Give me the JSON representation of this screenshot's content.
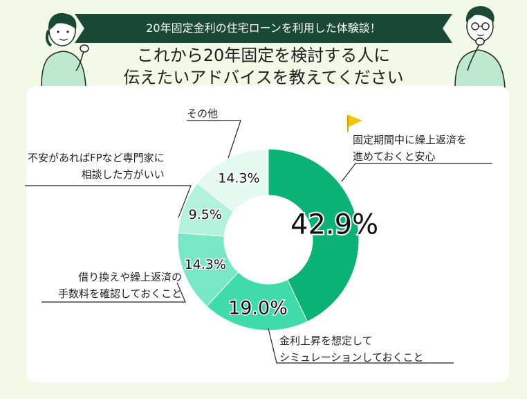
{
  "header": {
    "ribbon": "20年固定金利の住宅ローンを利用した体験談！",
    "line1": "これから20年固定を検討する人に",
    "line2": "伝えたいアドバイスを教えてください"
  },
  "colors": {
    "ribbon": "#1a4a36",
    "accent_flag": "#f3c300",
    "background": "#f2f9e6",
    "slices": [
      "#0bb275",
      "#3fdcaa",
      "#78e8c4",
      "#b2f2dd",
      "#e4faf1"
    ]
  },
  "chart_data": {
    "type": "pie",
    "donut": true,
    "start": "top, clockwise",
    "slices": [
      {
        "label_lines": [
          "固定期間中に繰上返済を",
          "進めておくと安心"
        ],
        "value": 42.9,
        "display": "42.9%"
      },
      {
        "label_lines": [
          "金利上昇を想定して",
          "シミュレーションしておくこと"
        ],
        "value": 19.0,
        "display": "19.0%"
      },
      {
        "label_lines": [
          "借り換えや繰上返済の",
          "手数料を確認しておくこと"
        ],
        "value": 14.3,
        "display": "14.3%"
      },
      {
        "label_lines": [
          "不安があればFPなど専門家に",
          "相談した方がいい"
        ],
        "value": 9.5,
        "display": "9.5%"
      },
      {
        "label_lines": [
          "その他"
        ],
        "value": 14.3,
        "display": "14.3%"
      }
    ]
  },
  "icons": {
    "flag": "flag-icon",
    "left_person": "woman-pointing-illustration",
    "right_person": "man-thinking-illustration"
  }
}
